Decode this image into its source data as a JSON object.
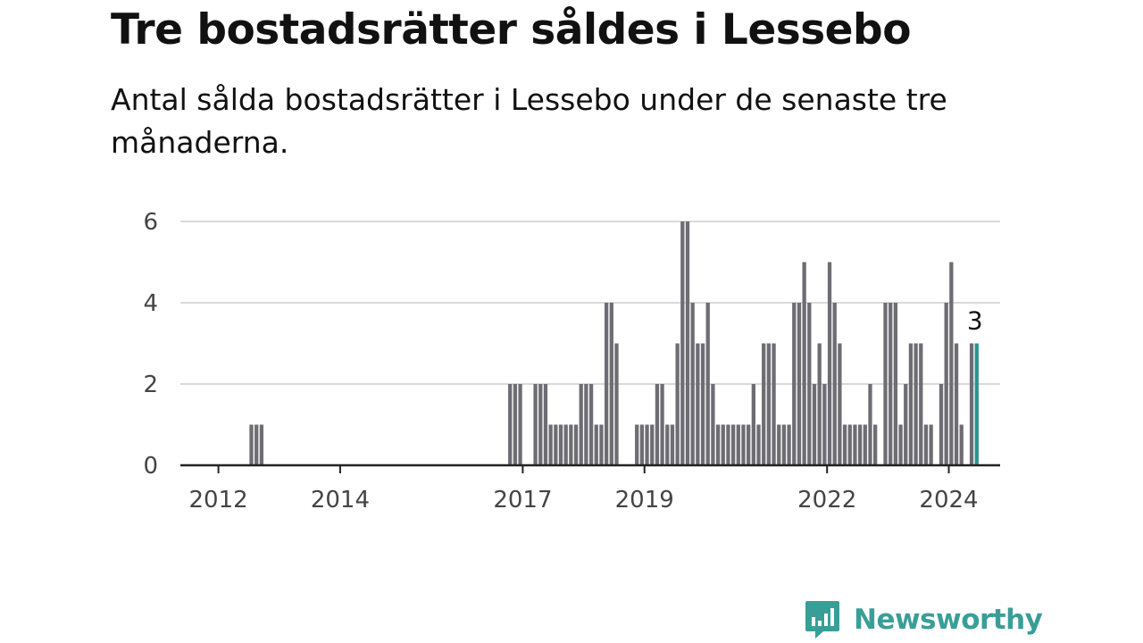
{
  "title": "Tre bostadsrätter såldes i Lessebo",
  "subtitle": "Antal sålda bostadsrätter i Lessebo under de senaste tre månaderna.",
  "brand": {
    "name": "Newsworthy",
    "color": "#3a9e98"
  },
  "colors": {
    "bar": "#6e6d73",
    "highlight": "#24968f",
    "grid": "#d9d9d9",
    "axis": "#222222"
  },
  "chart_data": {
    "type": "bar",
    "title": "Tre bostadsrätter såldes i Lessebo",
    "xlabel": "",
    "ylabel": "",
    "ylim": [
      0,
      6
    ],
    "yticks": [
      0,
      2,
      4,
      6
    ],
    "xticks": [
      "2012",
      "2014",
      "2017",
      "2019",
      "2022",
      "2024"
    ],
    "x_start": "2011-05",
    "x_end": "2024-07",
    "grid": true,
    "highlight_label": "3",
    "series": [
      {
        "values": [
          [
            "2012-07",
            1
          ],
          [
            "2012-08",
            1
          ],
          [
            "2012-09",
            1
          ],
          [
            "2016-10",
            2
          ],
          [
            "2016-11",
            2
          ],
          [
            "2016-12",
            2
          ],
          [
            "2017-03",
            2
          ],
          [
            "2017-04",
            2
          ],
          [
            "2017-05",
            2
          ],
          [
            "2017-06",
            1
          ],
          [
            "2017-07",
            1
          ],
          [
            "2017-08",
            1
          ],
          [
            "2017-09",
            1
          ],
          [
            "2017-10",
            1
          ],
          [
            "2017-11",
            1
          ],
          [
            "2017-12",
            2
          ],
          [
            "2018-01",
            2
          ],
          [
            "2018-02",
            2
          ],
          [
            "2018-03",
            1
          ],
          [
            "2018-04",
            1
          ],
          [
            "2018-05",
            4
          ],
          [
            "2018-06",
            4
          ],
          [
            "2018-07",
            3
          ],
          [
            "2018-11",
            1
          ],
          [
            "2018-12",
            1
          ],
          [
            "2019-01",
            1
          ],
          [
            "2019-02",
            1
          ],
          [
            "2019-03",
            2
          ],
          [
            "2019-04",
            2
          ],
          [
            "2019-05",
            1
          ],
          [
            "2019-06",
            1
          ],
          [
            "2019-07",
            3
          ],
          [
            "2019-08",
            6
          ],
          [
            "2019-09",
            6
          ],
          [
            "2019-10",
            4
          ],
          [
            "2019-11",
            3
          ],
          [
            "2019-12",
            3
          ],
          [
            "2020-01",
            4
          ],
          [
            "2020-02",
            2
          ],
          [
            "2020-03",
            1
          ],
          [
            "2020-04",
            1
          ],
          [
            "2020-05",
            1
          ],
          [
            "2020-06",
            1
          ],
          [
            "2020-07",
            1
          ],
          [
            "2020-08",
            1
          ],
          [
            "2020-09",
            1
          ],
          [
            "2020-10",
            2
          ],
          [
            "2020-11",
            1
          ],
          [
            "2020-12",
            3
          ],
          [
            "2021-01",
            3
          ],
          [
            "2021-02",
            3
          ],
          [
            "2021-03",
            1
          ],
          [
            "2021-04",
            1
          ],
          [
            "2021-05",
            1
          ],
          [
            "2021-06",
            4
          ],
          [
            "2021-07",
            4
          ],
          [
            "2021-08",
            5
          ],
          [
            "2021-09",
            4
          ],
          [
            "2021-10",
            2
          ],
          [
            "2021-11",
            3
          ],
          [
            "2021-12",
            2
          ],
          [
            "2022-01",
            5
          ],
          [
            "2022-02",
            4
          ],
          [
            "2022-03",
            3
          ],
          [
            "2022-04",
            1
          ],
          [
            "2022-05",
            1
          ],
          [
            "2022-06",
            1
          ],
          [
            "2022-07",
            1
          ],
          [
            "2022-08",
            1
          ],
          [
            "2022-09",
            2
          ],
          [
            "2022-10",
            1
          ],
          [
            "2022-12",
            4
          ],
          [
            "2023-01",
            4
          ],
          [
            "2023-02",
            4
          ],
          [
            "2023-03",
            1
          ],
          [
            "2023-04",
            2
          ],
          [
            "2023-05",
            3
          ],
          [
            "2023-06",
            3
          ],
          [
            "2023-07",
            3
          ],
          [
            "2023-08",
            1
          ],
          [
            "2023-09",
            1
          ],
          [
            "2023-11",
            2
          ],
          [
            "2023-12",
            4
          ],
          [
            "2024-01",
            5
          ],
          [
            "2024-02",
            3
          ],
          [
            "2024-03",
            1
          ],
          [
            "2024-05",
            3
          ],
          [
            "2024-06",
            3
          ]
        ]
      }
    ]
  }
}
